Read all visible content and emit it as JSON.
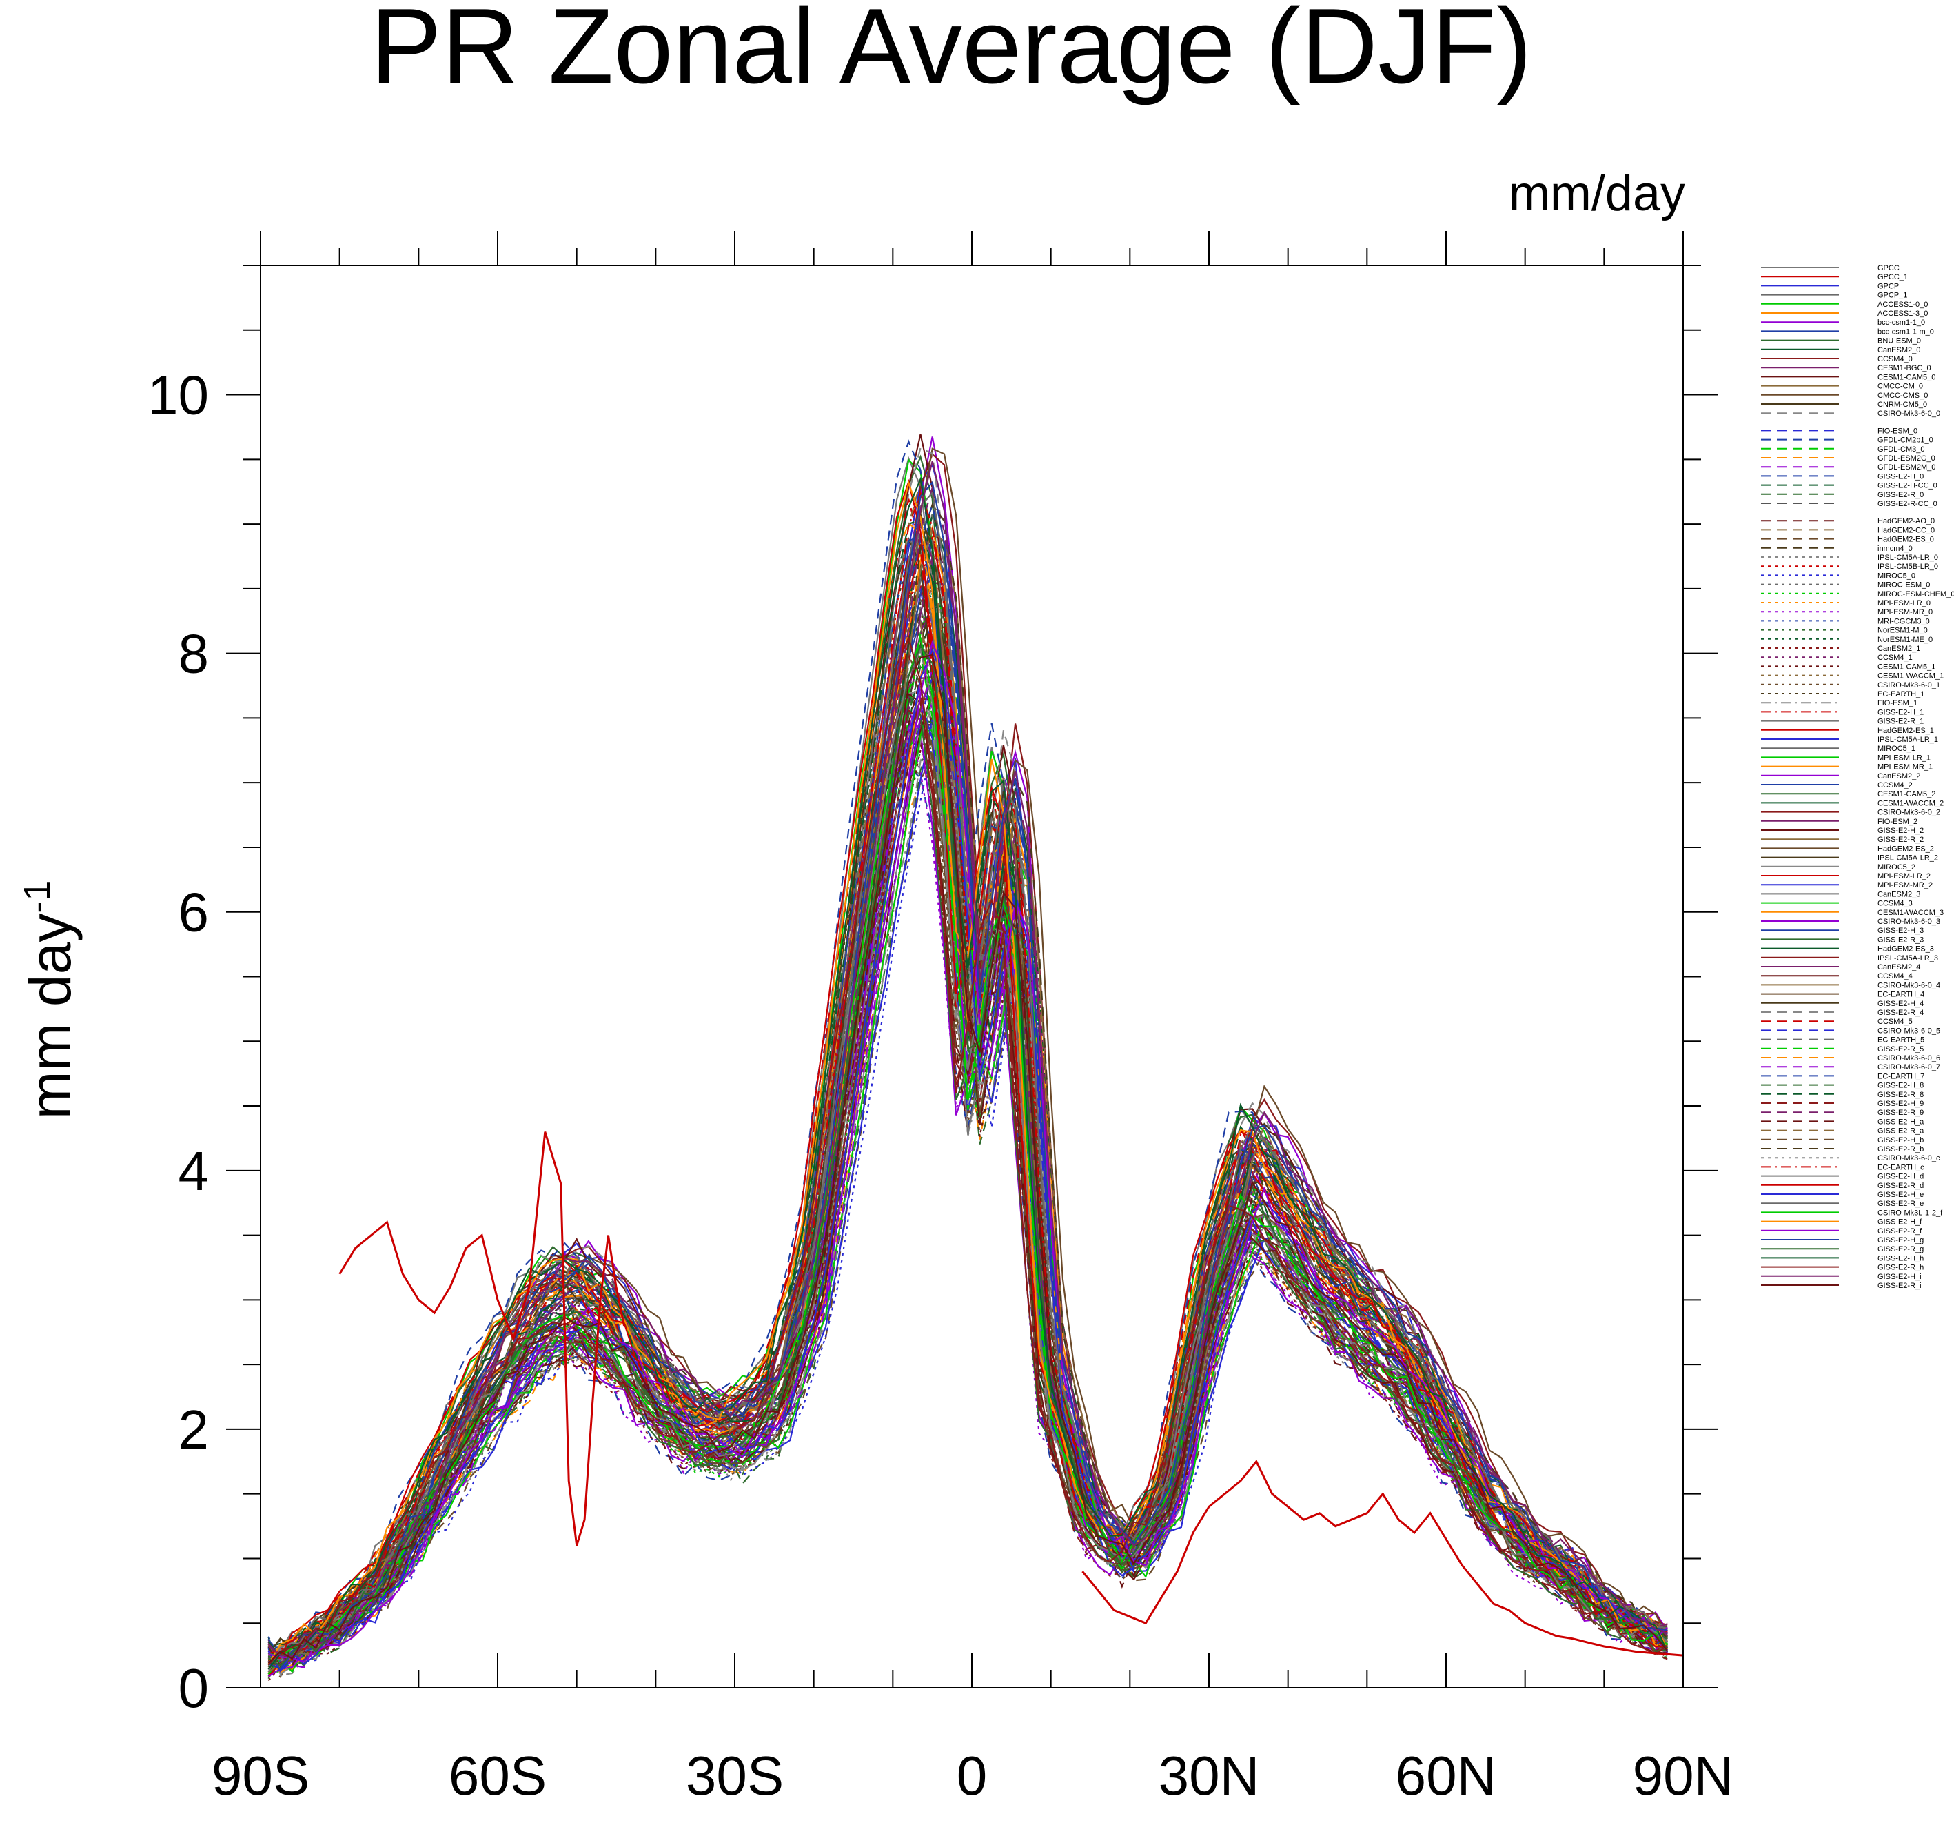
{
  "chart_data": {
    "type": "line",
    "title": "PR Zonal Average (DJF)",
    "units_label": "mm/day",
    "ylabel_base": "mm day",
    "ylabel_exp": "-1",
    "xlabel": "",
    "xlim": [
      -90,
      90
    ],
    "ylim": [
      0,
      11
    ],
    "x_ticks": [
      -90,
      -60,
      -30,
      0,
      30,
      60,
      90
    ],
    "x_tick_labels": [
      "90S",
      "60S",
      "30S",
      "0",
      "30N",
      "60N",
      "90N"
    ],
    "y_ticks": [
      0,
      2,
      4,
      6,
      8,
      10
    ],
    "y_tick_labels": [
      "0",
      "2",
      "4",
      "6",
      "8",
      "10"
    ],
    "grid": false,
    "legend_position": "right",
    "reference_profile": {
      "x": [
        -90,
        -85,
        -80,
        -75,
        -70,
        -65,
        -60,
        -55,
        -50,
        -45,
        -40,
        -35,
        -30,
        -25,
        -20,
        -15,
        -10,
        -8,
        -6,
        -4,
        -2,
        0,
        2,
        4,
        6,
        8,
        10,
        15,
        20,
        25,
        30,
        35,
        40,
        45,
        50,
        55,
        60,
        65,
        70,
        75,
        80,
        85,
        90
      ],
      "y": [
        0.15,
        0.3,
        0.5,
        0.8,
        1.3,
        1.9,
        2.4,
        2.85,
        3.0,
        2.75,
        2.3,
        2.0,
        1.95,
        2.2,
        3.2,
        5.3,
        7.3,
        8.1,
        8.5,
        8.0,
        6.5,
        4.8,
        5.6,
        6.5,
        6.0,
        4.0,
        2.4,
        1.3,
        1.0,
        1.5,
        3.0,
        4.0,
        3.6,
        3.1,
        2.8,
        2.5,
        2.0,
        1.5,
        1.1,
        0.9,
        0.6,
        0.45,
        0.3
      ]
    },
    "legend_entries": [
      {
        "name": "GPCC",
        "color": "#777777",
        "dash": "solid"
      },
      {
        "name": "GPCC_1",
        "color": "#cc0000",
        "dash": "solid"
      },
      {
        "name": "GPCP",
        "color": "#2a2ad6",
        "dash": "solid"
      },
      {
        "name": "GPCP_1",
        "color": "#6a6a6a",
        "dash": "solid"
      },
      {
        "name": "ACCESS1-0_0",
        "color": "#00cc00",
        "dash": "solid"
      },
      {
        "name": "ACCESS1-3_0",
        "color": "#ff8c00",
        "dash": "solid"
      },
      {
        "name": "bcc-csm1-1_0",
        "color": "#9400d3",
        "dash": "solid"
      },
      {
        "name": "bcc-csm1-1-m_0",
        "color": "#1f3fa6",
        "dash": "solid"
      },
      {
        "name": "BNU-ESM_0",
        "color": "#2e6b2e",
        "dash": "solid"
      },
      {
        "name": "CanESM2_0",
        "color": "#0b5a2a",
        "dash": "solid"
      },
      {
        "name": "CCSM4_0",
        "color": "#8b1a1a",
        "dash": "solid"
      },
      {
        "name": "CESM1-BGC_0",
        "color": "#7a1f6b",
        "dash": "solid"
      },
      {
        "name": "CESM1-CAM5_0",
        "color": "#6b1212",
        "dash": "solid"
      },
      {
        "name": "CMCC-CM_0",
        "color": "#8b6b3a",
        "dash": "solid"
      },
      {
        "name": "CMCC-CMS_0",
        "color": "#6b4a2a",
        "dash": "solid"
      },
      {
        "name": "CNRM-CM5_0",
        "color": "#4a3a1a",
        "dash": "solid"
      },
      {
        "name": "CSIRO-Mk3-6-0_0",
        "color": "#888888",
        "dash": "dash"
      },
      {
        "name": "FIO-ESM_0",
        "color": "#2a2ad6",
        "dash": "dash"
      },
      {
        "name": "GFDL-CM2p1_0",
        "color": "#1f3fa6",
        "dash": "dash"
      },
      {
        "name": "GFDL-CM3_0",
        "color": "#00cc00",
        "dash": "dash"
      },
      {
        "name": "GFDL-ESM2G_0",
        "color": "#ff8c00",
        "dash": "dash"
      },
      {
        "name": "GFDL-ESM2M_0",
        "color": "#9400d3",
        "dash": "dash"
      },
      {
        "name": "GISS-E2-H_0",
        "color": "#1f3fa6",
        "dash": "dash"
      },
      {
        "name": "GISS-E2-H-CC_0",
        "color": "#0b5a2a",
        "dash": "dash"
      },
      {
        "name": "GISS-E2-R_0",
        "color": "#2e6b2e",
        "dash": "dash"
      },
      {
        "name": "GISS-E2-R-CC_0",
        "color": "#555555",
        "dash": "dash"
      },
      {
        "name": "HadGEM2-AO_0",
        "color": "#6b1212",
        "dash": "dash"
      },
      {
        "name": "HadGEM2-CC_0",
        "color": "#8b6b3a",
        "dash": "dash"
      },
      {
        "name": "HadGEM2-ES_0",
        "color": "#6b4a2a",
        "dash": "dash"
      },
      {
        "name": "inmcm4_0",
        "color": "#4a3a1a",
        "dash": "dash"
      },
      {
        "name": "IPSL-CM5A-LR_0",
        "color": "#888888",
        "dash": "dot"
      },
      {
        "name": "IPSL-CM5B-LR_0",
        "color": "#cc0000",
        "dash": "dot"
      },
      {
        "name": "MIROC5_0",
        "color": "#2a2ad6",
        "dash": "dot"
      },
      {
        "name": "MIROC-ESM_0",
        "color": "#6a6a6a",
        "dash": "dot"
      },
      {
        "name": "MIROC-ESM-CHEM_0",
        "color": "#00cc00",
        "dash": "dot"
      },
      {
        "name": "MPI-ESM-LR_0",
        "color": "#ff8c00",
        "dash": "dot"
      },
      {
        "name": "MPI-ESM-MR_0",
        "color": "#9400d3",
        "dash": "dot"
      },
      {
        "name": "MRI-CGCM3_0",
        "color": "#1f3fa6",
        "dash": "dot"
      },
      {
        "name": "NorESM1-M_0",
        "color": "#2e6b2e",
        "dash": "dot"
      },
      {
        "name": "NorESM1-ME_0",
        "color": "#0b5a2a",
        "dash": "dot"
      },
      {
        "name": "CanESM2_1",
        "color": "#8b1a1a",
        "dash": "dot"
      },
      {
        "name": "CCSM4_1",
        "color": "#7a1f6b",
        "dash": "dot"
      },
      {
        "name": "CESM1-CAM5_1",
        "color": "#6b1212",
        "dash": "dot"
      },
      {
        "name": "CESM1-WACCM_1",
        "color": "#8b6b3a",
        "dash": "dot"
      },
      {
        "name": "CSIRO-Mk3-6-0_1",
        "color": "#6b4a2a",
        "dash": "dot"
      },
      {
        "name": "EC-EARTH_1",
        "color": "#4a3a1a",
        "dash": "dot"
      },
      {
        "name": "FIO-ESM_1",
        "color": "#888888",
        "dash": "dashdot"
      },
      {
        "name": "GISS-E2-H_1",
        "color": "#cc0000",
        "dash": "dashdot"
      },
      {
        "name": "GISS-E2-R_1",
        "color": "#777777",
        "dash": "solid"
      },
      {
        "name": "HadGEM2-ES_1",
        "color": "#cc0000",
        "dash": "solid"
      },
      {
        "name": "IPSL-CM5A-LR_1",
        "color": "#2a2ad6",
        "dash": "solid"
      },
      {
        "name": "MIROC5_1",
        "color": "#6a6a6a",
        "dash": "solid"
      },
      {
        "name": "MPI-ESM-LR_1",
        "color": "#00cc00",
        "dash": "solid"
      },
      {
        "name": "MPI-ESM-MR_1",
        "color": "#ff8c00",
        "dash": "solid"
      },
      {
        "name": "CanESM2_2",
        "color": "#9400d3",
        "dash": "solid"
      },
      {
        "name": "CCSM4_2",
        "color": "#1f3fa6",
        "dash": "solid"
      },
      {
        "name": "CESM1-CAM5_2",
        "color": "#2e6b2e",
        "dash": "solid"
      },
      {
        "name": "CESM1-WACCM_2",
        "color": "#0b5a2a",
        "dash": "solid"
      },
      {
        "name": "CSIRO-Mk3-6-0_2",
        "color": "#8b1a1a",
        "dash": "solid"
      },
      {
        "name": "FIO-ESM_2",
        "color": "#7a1f6b",
        "dash": "solid"
      },
      {
        "name": "GISS-E2-H_2",
        "color": "#6b1212",
        "dash": "solid"
      },
      {
        "name": "GISS-E2-R_2",
        "color": "#8b6b3a",
        "dash": "solid"
      },
      {
        "name": "HadGEM2-ES_2",
        "color": "#6b4a2a",
        "dash": "solid"
      },
      {
        "name": "IPSL-CM5A-LR_2",
        "color": "#4a3a1a",
        "dash": "solid"
      },
      {
        "name": "MIROC5_2",
        "color": "#888888",
        "dash": "solid"
      },
      {
        "name": "MPI-ESM-LR_2",
        "color": "#cc0000",
        "dash": "solid"
      },
      {
        "name": "MPI-ESM-MR_2",
        "color": "#2a2ad6",
        "dash": "solid"
      },
      {
        "name": "CanESM2_3",
        "color": "#6a6a6a",
        "dash": "solid"
      },
      {
        "name": "CCSM4_3",
        "color": "#00cc00",
        "dash": "solid"
      },
      {
        "name": "CESM1-WACCM_3",
        "color": "#ff8c00",
        "dash": "solid"
      },
      {
        "name": "CSIRO-Mk3-6-0_3",
        "color": "#9400d3",
        "dash": "solid"
      },
      {
        "name": "GISS-E2-H_3",
        "color": "#1f3fa6",
        "dash": "solid"
      },
      {
        "name": "GISS-E2-R_3",
        "color": "#2e6b2e",
        "dash": "solid"
      },
      {
        "name": "HadGEM2-ES_3",
        "color": "#0b5a2a",
        "dash": "solid"
      },
      {
        "name": "IPSL-CM5A-LR_3",
        "color": "#8b1a1a",
        "dash": "solid"
      },
      {
        "name": "CanESM2_4",
        "color": "#7a1f6b",
        "dash": "solid"
      },
      {
        "name": "CCSM4_4",
        "color": "#6b1212",
        "dash": "solid"
      },
      {
        "name": "CSIRO-Mk3-6-0_4",
        "color": "#8b6b3a",
        "dash": "solid"
      },
      {
        "name": "EC-EARTH_4",
        "color": "#6b4a2a",
        "dash": "solid"
      },
      {
        "name": "GISS-E2-H_4",
        "color": "#4a3a1a",
        "dash": "solid"
      },
      {
        "name": "GISS-E2-R_4",
        "color": "#888888",
        "dash": "dash"
      },
      {
        "name": "CCSM4_5",
        "color": "#cc0000",
        "dash": "dash"
      },
      {
        "name": "CSIRO-Mk3-6-0_5",
        "color": "#2a2ad6",
        "dash": "dash"
      },
      {
        "name": "EC-EARTH_5",
        "color": "#6a6a6a",
        "dash": "dash"
      },
      {
        "name": "GISS-E2-R_5",
        "color": "#00cc00",
        "dash": "dash"
      },
      {
        "name": "CSIRO-Mk3-6-0_6",
        "color": "#ff8c00",
        "dash": "dash"
      },
      {
        "name": "CSIRO-Mk3-6-0_7",
        "color": "#9400d3",
        "dash": "dash"
      },
      {
        "name": "EC-EARTH_7",
        "color": "#1f3fa6",
        "dash": "dash"
      },
      {
        "name": "GISS-E2-H_8",
        "color": "#2e6b2e",
        "dash": "dash"
      },
      {
        "name": "GISS-E2-R_8",
        "color": "#0b5a2a",
        "dash": "dash"
      },
      {
        "name": "GISS-E2-H_9",
        "color": "#8b1a1a",
        "dash": "dash"
      },
      {
        "name": "GISS-E2-R_9",
        "color": "#7a1f6b",
        "dash": "dash"
      },
      {
        "name": "GISS-E2-H_a",
        "color": "#6b1212",
        "dash": "dash"
      },
      {
        "name": "GISS-E2-R_a",
        "color": "#8b6b3a",
        "dash": "dash"
      },
      {
        "name": "GISS-E2-H_b",
        "color": "#6b4a2a",
        "dash": "dash"
      },
      {
        "name": "GISS-E2-R_b",
        "color": "#4a3a1a",
        "dash": "dash"
      },
      {
        "name": "CSIRO-Mk3-6-0_c",
        "color": "#888888",
        "dash": "dot"
      },
      {
        "name": "EC-EARTH_c",
        "color": "#cc0000",
        "dash": "dashdot"
      },
      {
        "name": "GISS-E2-H_d",
        "color": "#777777",
        "dash": "solid"
      },
      {
        "name": "GISS-E2-R_d",
        "color": "#cc0000",
        "dash": "solid"
      },
      {
        "name": "GISS-E2-H_e",
        "color": "#2a2ad6",
        "dash": "solid"
      },
      {
        "name": "GISS-E2-R_e",
        "color": "#6a6a6a",
        "dash": "solid"
      },
      {
        "name": "CSIRO-Mk3L-1-2_f",
        "color": "#00cc00",
        "dash": "solid"
      },
      {
        "name": "GISS-E2-H_f",
        "color": "#ff8c00",
        "dash": "solid"
      },
      {
        "name": "GISS-E2-R_f",
        "color": "#9400d3",
        "dash": "solid"
      },
      {
        "name": "GISS-E2-H_g",
        "color": "#1f3fa6",
        "dash": "solid"
      },
      {
        "name": "GISS-E2-R_g",
        "color": "#2e6b2e",
        "dash": "solid"
      },
      {
        "name": "GISS-E2-H_h",
        "color": "#0b5a2a",
        "dash": "solid"
      },
      {
        "name": "GISS-E2-R_h",
        "color": "#8b1a1a",
        "dash": "solid"
      },
      {
        "name": "GISS-E2-H_i",
        "color": "#7a1f6b",
        "dash": "solid"
      },
      {
        "name": "GISS-E2-R_i",
        "color": "#6b1212",
        "dash": "solid"
      }
    ],
    "highlight_series": [
      {
        "name": "GPCC_1",
        "x": [
          -80,
          -78,
          -76,
          -74,
          -72,
          -70,
          -68,
          -66,
          -64,
          -62,
          -60,
          -58,
          -56,
          -54,
          -52,
          -51,
          -50,
          -49,
          -48,
          -47,
          -46,
          -45,
          -44
        ],
        "y": [
          3.2,
          3.4,
          3.5,
          3.6,
          3.2,
          3.0,
          2.9,
          3.1,
          3.4,
          3.5,
          3.0,
          2.7,
          3.1,
          4.3,
          3.9,
          1.6,
          1.1,
          1.3,
          2.2,
          3.0,
          3.5,
          3.1,
          2.8
        ]
      },
      {
        "name": "GPCC_1",
        "x": [
          14,
          16,
          18,
          20,
          22,
          24,
          26,
          28,
          30,
          32,
          34,
          36,
          38,
          40,
          42,
          44,
          46,
          48,
          50,
          52,
          54,
          56,
          58,
          60,
          62,
          64,
          66,
          68,
          70,
          72,
          74,
          76,
          78,
          80,
          82,
          84,
          86,
          88,
          90
        ],
        "y": [
          0.9,
          0.75,
          0.6,
          0.55,
          0.5,
          0.7,
          0.9,
          1.2,
          1.4,
          1.5,
          1.6,
          1.75,
          1.5,
          1.4,
          1.3,
          1.35,
          1.25,
          1.3,
          1.35,
          1.5,
          1.3,
          1.2,
          1.35,
          1.15,
          0.95,
          0.8,
          0.65,
          0.6,
          0.5,
          0.45,
          0.4,
          0.38,
          0.35,
          0.32,
          0.3,
          0.28,
          0.27,
          0.26,
          0.25
        ]
      }
    ]
  }
}
